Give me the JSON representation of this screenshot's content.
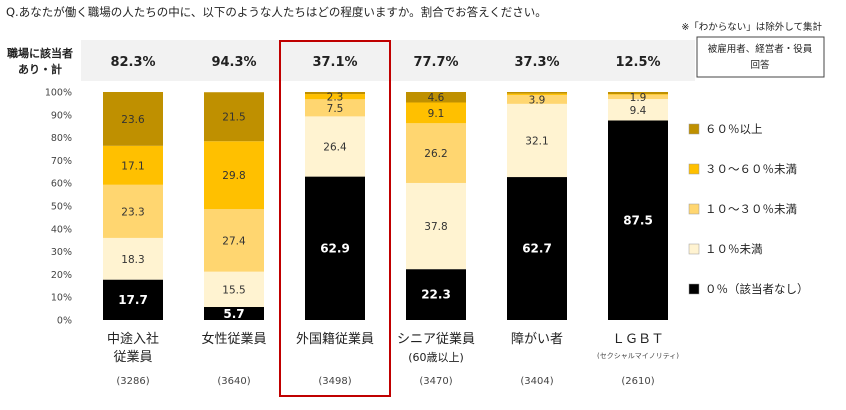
{
  "question": "Q.あなたが働く職場の人たちの中に、以下のような人たちはどの程度いますか。割合でお答えください。",
  "note": "※「わからない」は除外して集計",
  "note_box": [
    "被雇用者、経営者・役員",
    "回答"
  ],
  "summary_label": [
    "職場に該当者",
    "あり・計"
  ],
  "summary_values": [
    "82.3%",
    "94.3%",
    "37.1%",
    "77.7%",
    "37.3%",
    "12.5%"
  ],
  "highlight_index": 2,
  "colors": {
    "black": "#000000",
    "cream": "#FFF3D1",
    "light_yellow": "#FFD670",
    "orange_yellow": "#FFC000",
    "dark_gold": "#BF9000",
    "highlight_border": "#C00000",
    "summary_band": "#F2F2F2"
  },
  "chart_data": {
    "type": "bar",
    "stacked": true,
    "categories": [
      [
        "中途入社",
        "従業員"
      ],
      [
        "女性従業員"
      ],
      [
        "外国籍従業員"
      ],
      [
        "シニア従業員",
        "(60歳以上)"
      ],
      [
        "障がい者"
      ],
      [
        "ＬＧＢＴ"
      ]
    ],
    "category_sublabels": [
      "",
      "",
      "",
      "",
      "",
      "(セクシャルマイノリティ)"
    ],
    "sample_sizes": [
      "(3286)",
      "(3640)",
      "(3498)",
      "(3470)",
      "(3404)",
      "(2610)"
    ],
    "ylim": [
      0,
      100
    ],
    "yticks": [
      "0%",
      "10%",
      "20%",
      "30%",
      "40%",
      "50%",
      "60%",
      "70%",
      "80%",
      "90%",
      "100%"
    ],
    "legend_position": "right",
    "series": [
      {
        "name": "０％（該当者なし）",
        "color": "#000000",
        "values": [
          17.7,
          5.7,
          62.9,
          22.3,
          62.7,
          87.5
        ]
      },
      {
        "name": "１０％未満",
        "color": "#FFF3D1",
        "values": [
          18.3,
          15.5,
          26.4,
          37.8,
          32.1,
          9.4
        ]
      },
      {
        "name": "１０～３０％未満",
        "color": "#FFD670",
        "values": [
          23.3,
          27.4,
          7.5,
          26.2,
          3.9,
          1.9
        ]
      },
      {
        "name": "３０～６０％未満",
        "color": "#FFC000",
        "values": [
          17.1,
          29.8,
          2.3,
          9.1,
          0.6,
          0.3
        ]
      },
      {
        "name": "６０％以上",
        "color": "#BF9000",
        "values": [
          23.6,
          21.5,
          0.9,
          4.6,
          0.7,
          0.9
        ]
      }
    ],
    "data_labels": [
      [
        "17.7",
        "18.3",
        "23.3",
        "17.1",
        "23.6"
      ],
      [
        "5.7",
        "15.5",
        "27.4",
        "29.8",
        "21.5"
      ],
      [
        "62.9",
        "26.4",
        "7.5",
        "2.3",
        ""
      ],
      [
        "22.3",
        "37.8",
        "26.2",
        "9.1",
        "4.6"
      ],
      [
        "62.7",
        "32.1",
        "3.9",
        "",
        ""
      ],
      [
        "87.5",
        "9.4",
        "1.9",
        "",
        ""
      ]
    ]
  }
}
